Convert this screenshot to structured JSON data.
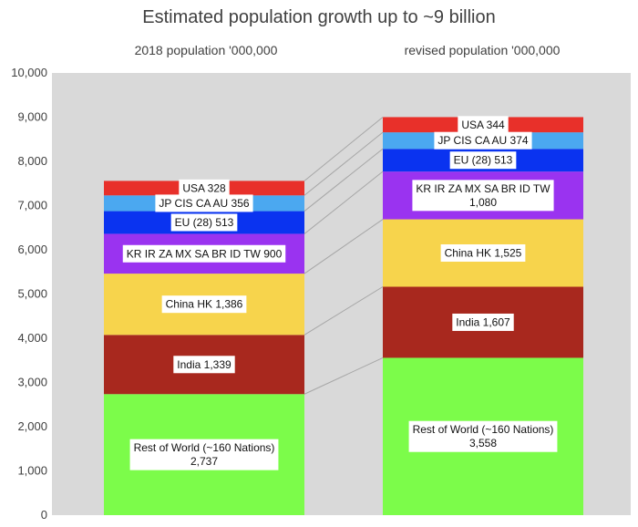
{
  "chart_data": {
    "type": "bar",
    "subtype": "stacked",
    "title": "Estimated population growth up to ~9 billion",
    "categories": [
      "2018 population  '000,000",
      "revised population  '000,000"
    ],
    "ylim": [
      0,
      10000
    ],
    "yticks": [
      0,
      1000,
      2000,
      3000,
      4000,
      5000,
      6000,
      7000,
      8000,
      9000,
      10000
    ],
    "ytick_labels": [
      "0",
      "1,000",
      "2,000",
      "3,000",
      "4,000",
      "5,000",
      "6,000",
      "7,000",
      "8,000",
      "9,000",
      "10,000"
    ],
    "series": [
      {
        "name": "Rest of World (~160 Nations)",
        "color": "#7CFC4A",
        "values": [
          2737,
          3558
        ],
        "labels": [
          [
            "Rest of World (~160 Nations)",
            "2,737"
          ],
          [
            "Rest of World (~160 Nations)",
            "3,558"
          ]
        ]
      },
      {
        "name": "India",
        "color": "#A8281E",
        "values": [
          1339,
          1607
        ],
        "labels": [
          [
            "India 1,339"
          ],
          [
            "India 1,607"
          ]
        ]
      },
      {
        "name": "China HK",
        "color": "#F7D44C",
        "values": [
          1386,
          1525
        ],
        "labels": [
          [
            "China HK 1,386"
          ],
          [
            "China HK 1,525"
          ]
        ]
      },
      {
        "name": "KR IR ZA MX SA BR ID TW",
        "color": "#9A33F0",
        "values": [
          900,
          1080
        ],
        "labels": [
          [
            "KR IR ZA MX SA BR ID TW 900"
          ],
          [
            "KR IR ZA MX SA BR ID TW",
            "1,080"
          ]
        ]
      },
      {
        "name": "EU (28)",
        "color": "#0A33F0",
        "values": [
          513,
          513
        ],
        "labels": [
          [
            "EU (28) 513"
          ],
          [
            "EU (28) 513"
          ]
        ]
      },
      {
        "name": "JP CIS CA AU",
        "color": "#4BA8F0",
        "values": [
          356,
          374
        ],
        "labels": [
          [
            "JP CIS CA AU 356"
          ],
          [
            "JP CIS CA AU 374"
          ]
        ]
      },
      {
        "name": "USA",
        "color": "#E8302A",
        "values": [
          328,
          344
        ],
        "labels": [
          [
            "USA 328"
          ],
          [
            "USA 344"
          ]
        ]
      }
    ],
    "plot_background": "#D9D9D9",
    "connector_color": "#A6A6A6",
    "grid": false,
    "legend": "none"
  }
}
